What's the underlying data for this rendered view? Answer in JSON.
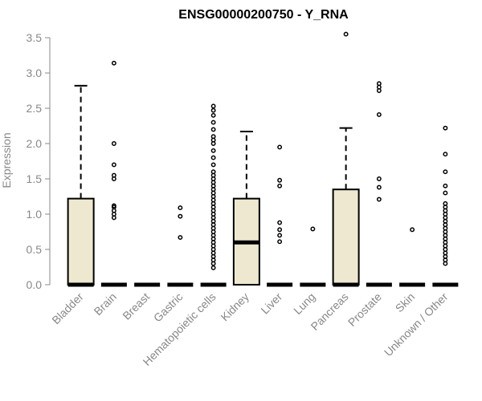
{
  "chart_data": {
    "type": "boxplot",
    "title": "ENSG00000200750 - Y_RNA",
    "ylabel": "Expression",
    "xlabel": "",
    "ylim": [
      0,
      3.5
    ],
    "yticks": [
      "0.0",
      "0.5",
      "1.0",
      "1.5",
      "2.0",
      "2.5",
      "3.0",
      "3.5"
    ],
    "colors": {
      "box_fill": "#EEE8D0",
      "box_stroke": "#000000",
      "axis": "#888888"
    },
    "categories": [
      "Bladder",
      "Brain",
      "Breast",
      "Gastric",
      "Hematopoietic cells",
      "Kidney",
      "Liver",
      "Lung",
      "Pancreas",
      "Prostate",
      "Skin",
      "Unknown / Other"
    ],
    "boxes": [
      {
        "q1": 0,
        "median": 0,
        "q3": 1.22,
        "whisker_low": 0,
        "whisker_high": 2.82,
        "outliers": []
      },
      {
        "q1": 0,
        "median": 0,
        "q3": 0,
        "whisker_low": 0,
        "whisker_high": 0,
        "outliers": [
          0.95,
          1.0,
          1.05,
          1.1,
          1.12,
          1.5,
          1.55,
          1.7,
          2.0,
          3.14
        ]
      },
      {
        "q1": 0,
        "median": 0,
        "q3": 0,
        "whisker_low": 0,
        "whisker_high": 0,
        "outliers": []
      },
      {
        "q1": 0,
        "median": 0,
        "q3": 0,
        "whisker_low": 0,
        "whisker_high": 0,
        "outliers": [
          0.67,
          0.97,
          1.09
        ]
      },
      {
        "q1": 0,
        "median": 0,
        "q3": 0,
        "whisker_low": 0,
        "whisker_high": 0,
        "outliers": [
          0.24,
          0.3,
          0.35,
          0.4,
          0.45,
          0.5,
          0.55,
          0.6,
          0.65,
          0.7,
          0.75,
          0.8,
          0.85,
          0.9,
          0.95,
          1.0,
          1.05,
          1.1,
          1.15,
          1.2,
          1.25,
          1.3,
          1.35,
          1.4,
          1.45,
          1.5,
          1.55,
          1.6,
          1.7,
          1.8,
          1.9,
          2.0,
          2.05,
          2.1,
          2.2,
          2.3,
          2.4,
          2.47,
          2.53
        ]
      },
      {
        "q1": 0,
        "median": 0.6,
        "q3": 1.22,
        "whisker_low": 0,
        "whisker_high": 2.17,
        "outliers": []
      },
      {
        "q1": 0,
        "median": 0,
        "q3": 0,
        "whisker_low": 0,
        "whisker_high": 0,
        "outliers": [
          0.61,
          0.7,
          0.78,
          0.88,
          1.4,
          1.48,
          1.95
        ]
      },
      {
        "q1": 0,
        "median": 0,
        "q3": 0,
        "whisker_low": 0,
        "whisker_high": 0,
        "outliers": [
          0.79
        ]
      },
      {
        "q1": 0,
        "median": 0,
        "q3": 1.35,
        "whisker_low": 0,
        "whisker_high": 2.22,
        "outliers": [
          3.55
        ]
      },
      {
        "q1": 0,
        "median": 0,
        "q3": 0,
        "whisker_low": 0,
        "whisker_high": 0,
        "outliers": [
          1.21,
          1.38,
          1.5,
          2.41,
          2.75,
          2.8,
          2.85
        ]
      },
      {
        "q1": 0,
        "median": 0,
        "q3": 0,
        "whisker_low": 0,
        "whisker_high": 0,
        "outliers": [
          0.78
        ]
      },
      {
        "q1": 0,
        "median": 0,
        "q3": 0,
        "whisker_low": 0,
        "whisker_high": 0,
        "outliers": [
          0.3,
          0.35,
          0.4,
          0.45,
          0.5,
          0.55,
          0.6,
          0.65,
          0.7,
          0.75,
          0.8,
          0.85,
          0.9,
          0.95,
          1.0,
          1.05,
          1.1,
          1.15,
          1.3,
          1.4,
          1.6,
          1.85,
          2.22
        ]
      }
    ]
  }
}
